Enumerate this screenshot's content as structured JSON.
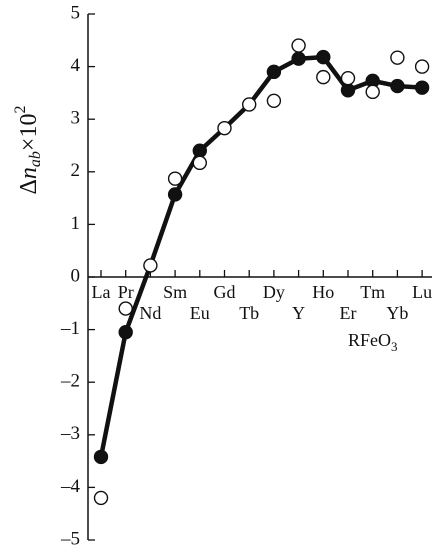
{
  "chart_data": {
    "type": "line",
    "ylabel": [
      "Δ",
      "n",
      "ab",
      "×10",
      "2"
    ],
    "annotation": [
      "RFeO",
      "3"
    ],
    "categories": [
      "La",
      "Pr",
      "Nd",
      "Sm",
      "Eu",
      "Gd",
      "Tb",
      "Dy",
      "Y",
      "Ho",
      "Er",
      "Tm",
      "Yb",
      "Lu"
    ],
    "series": [
      {
        "color": "#111111",
        "marker": "none",
        "values": [
          -3.42,
          -1.05,
          0.22,
          1.57,
          2.4,
          2.83,
          3.28,
          3.9,
          4.15,
          4.18,
          3.55,
          3.73,
          3.63,
          3.6
        ]
      },
      {
        "color": "#111111",
        "marker": "filled",
        "values": [
          -3.42,
          -1.05,
          null,
          1.57,
          2.4,
          null,
          null,
          3.9,
          4.15,
          4.18,
          3.55,
          3.73,
          3.63,
          3.6
        ]
      },
      {
        "color": "#111111",
        "marker": "open",
        "values": [
          -4.2,
          -0.6,
          0.22,
          1.87,
          2.17,
          2.83,
          3.28,
          3.35,
          4.4,
          3.8,
          3.78,
          3.52,
          4.17,
          4.0
        ]
      }
    ],
    "ylim": [
      -5,
      5
    ],
    "yticks": [
      {
        "value": -5,
        "label": "–5"
      },
      {
        "value": -4,
        "label": "–4"
      },
      {
        "value": -3,
        "label": "–3"
      },
      {
        "value": -2,
        "label": "–2"
      },
      {
        "value": -1,
        "label": "–1"
      },
      0,
      1,
      2,
      3,
      4,
      5
    ],
    "grid": false
  }
}
